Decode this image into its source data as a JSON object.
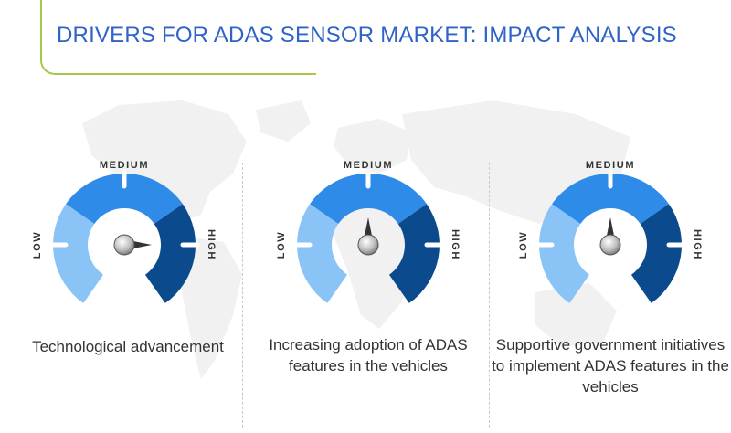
{
  "title": "DRIVERS FOR ADAS SENSOR MARKET: IMPACT ANALYSIS",
  "scale": {
    "low": "LOW",
    "medium": "MEDIUM",
    "high": "HIGH"
  },
  "colors": {
    "low": "#8ac4f7",
    "medium": "#2e8be8",
    "high": "#0b4a8c",
    "accent": "#a6c84a",
    "title": "#2f63c5"
  },
  "drivers": [
    {
      "label": "Technological advancement",
      "impact": "high"
    },
    {
      "label": "Increasing adoption of ADAS features in the vehicles",
      "impact": "medium"
    },
    {
      "label": "Supportive government initiatives to implement ADAS features in the vehicles",
      "impact": "medium"
    }
  ]
}
